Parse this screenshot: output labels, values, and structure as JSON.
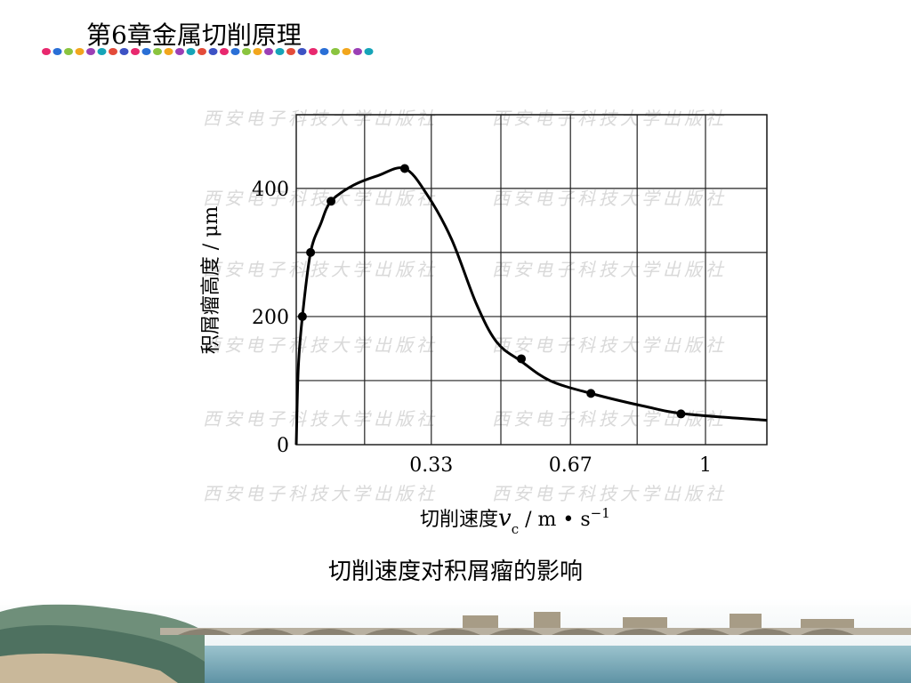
{
  "slide": {
    "title": "第6章金属切削原理",
    "caption": "切削速度对积屑瘤的影响"
  },
  "watermark": "西安电子科技大学出版社",
  "colors": {
    "header_dots": [
      "#e8286e",
      "#2a6fd6",
      "#8ac43f",
      "#f2a61d",
      "#9b3fb5",
      "#16a4b8",
      "#e34b3a",
      "#3d52c4"
    ],
    "grid": "#222222",
    "curve": "#000000",
    "watermark": "#d9d9d9"
  },
  "chart_data": {
    "type": "line",
    "title": "",
    "xlabel_main": "切削速度",
    "xlabel_var": "v",
    "xlabel_sub": "c",
    "xlabel_unit": " / m • s",
    "xlabel_exp": "−1",
    "ylabel": "积屑瘤高度 / μm",
    "xlim": [
      0,
      1.15
    ],
    "ylim": [
      0,
      515
    ],
    "x_tick_labels": [
      "0.33",
      "0.67",
      "1"
    ],
    "x_ticks": [
      0.33,
      0.67,
      1.0
    ],
    "y_tick_labels": [
      "0",
      "200",
      "400"
    ],
    "y_ticks": [
      0,
      200,
      400
    ],
    "x_gridlines": [
      0.167,
      0.33,
      0.5,
      0.67,
      0.833,
      1.0,
      1.15
    ],
    "y_gridlines": [
      100,
      200,
      300,
      400,
      515
    ],
    "grid": true,
    "series": [
      {
        "name": "",
        "curve": [
          [
            0.0,
            0
          ],
          [
            0.005,
            120
          ],
          [
            0.015,
            200
          ],
          [
            0.035,
            300
          ],
          [
            0.06,
            345
          ],
          [
            0.085,
            380
          ],
          [
            0.14,
            405
          ],
          [
            0.2,
            420
          ],
          [
            0.265,
            431
          ],
          [
            0.32,
            390
          ],
          [
            0.38,
            320
          ],
          [
            0.44,
            220
          ],
          [
            0.49,
            160
          ],
          [
            0.55,
            130
          ],
          [
            0.62,
            100
          ],
          [
            0.72,
            80
          ],
          [
            0.85,
            60
          ],
          [
            0.95,
            48
          ],
          [
            1.15,
            38
          ]
        ],
        "points": [
          {
            "x": 0.015,
            "y": 200
          },
          {
            "x": 0.035,
            "y": 300
          },
          {
            "x": 0.085,
            "y": 380
          },
          {
            "x": 0.265,
            "y": 431
          },
          {
            "x": 0.55,
            "y": 134
          },
          {
            "x": 0.72,
            "y": 80
          },
          {
            "x": 0.94,
            "y": 48
          }
        ]
      }
    ]
  }
}
